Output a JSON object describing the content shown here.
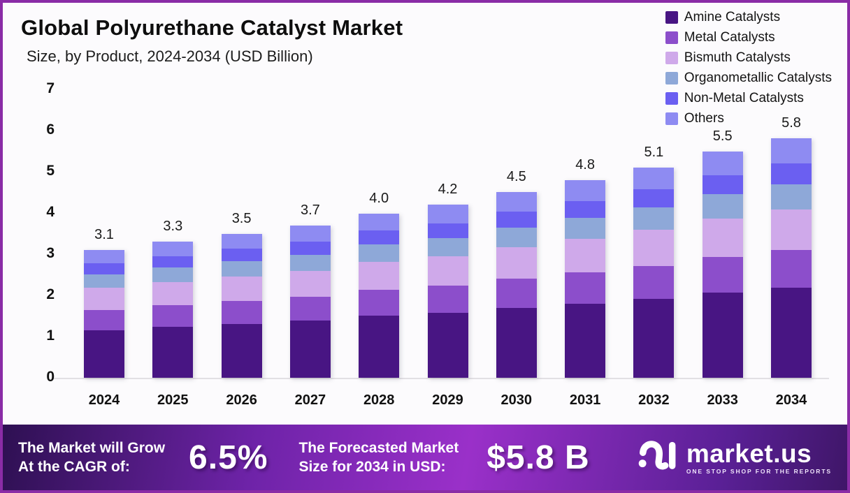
{
  "header": {
    "title": "Global Polyurethane Catalyst Market",
    "subtitle": "Size, by Product, 2024-2034 (USD Billion)"
  },
  "chart_data": {
    "type": "bar",
    "stacked": true,
    "title": "Global Polyurethane Catalyst Market Size, by Product, 2024-2034 (USD Billion)",
    "categories": [
      "2024",
      "2025",
      "2026",
      "2027",
      "2028",
      "2029",
      "2030",
      "2031",
      "2032",
      "2033",
      "2034"
    ],
    "total_labels": [
      "3.1",
      "3.3",
      "3.5",
      "3.7",
      "4.0",
      "4.2",
      "4.5",
      "4.8",
      "5.1",
      "5.5",
      "5.8"
    ],
    "totals": [
      3.1,
      3.3,
      3.5,
      3.7,
      4.0,
      4.2,
      4.5,
      4.8,
      5.1,
      5.5,
      5.8
    ],
    "series": [
      {
        "name": "Amine Catalysts",
        "color": "#481583",
        "values": [
          1.16,
          1.24,
          1.31,
          1.39,
          1.5,
          1.58,
          1.69,
          1.8,
          1.91,
          2.06,
          2.18
        ]
      },
      {
        "name": "Metal Catalysts",
        "color": "#8c4ecb",
        "values": [
          0.49,
          0.52,
          0.55,
          0.58,
          0.63,
          0.66,
          0.71,
          0.76,
          0.81,
          0.87,
          0.92
        ]
      },
      {
        "name": "Bismuth Catalysts",
        "color": "#cfa9ea",
        "values": [
          0.53,
          0.56,
          0.6,
          0.63,
          0.68,
          0.71,
          0.77,
          0.82,
          0.87,
          0.94,
          0.99
        ]
      },
      {
        "name": "Organometallic Catalysts",
        "color": "#8ea8d8",
        "values": [
          0.33,
          0.35,
          0.37,
          0.39,
          0.42,
          0.44,
          0.47,
          0.5,
          0.54,
          0.58,
          0.61
        ]
      },
      {
        "name": "Non-Metal Catalysts",
        "color": "#6b5ff1",
        "values": [
          0.27,
          0.28,
          0.3,
          0.32,
          0.34,
          0.36,
          0.39,
          0.41,
          0.44,
          0.47,
          0.5
        ]
      },
      {
        "name": "Others",
        "color": "#8e8bf2",
        "values": [
          0.33,
          0.35,
          0.37,
          0.39,
          0.42,
          0.45,
          0.48,
          0.51,
          0.54,
          0.58,
          0.61
        ]
      }
    ],
    "xlabel": "",
    "ylabel": "",
    "ylim": [
      0,
      7
    ],
    "yticks": [
      0,
      1,
      2,
      3,
      4,
      5,
      6,
      7
    ],
    "grid": false,
    "legend_position": "top-right"
  },
  "banner": {
    "cagr_label_line1": "The Market will Grow",
    "cagr_label_line2": "At the CAGR of:",
    "cagr_value": "6.5%",
    "forecast_label_line1": "The Forecasted Market",
    "forecast_label_line2": "Size for 2034 in USD:",
    "forecast_value": "$5.8 B",
    "brand_name": "market.us",
    "brand_tagline": "ONE STOP SHOP FOR THE REPORTS"
  },
  "colors": {
    "frame_border": "#8a2ca6",
    "chart_background": "#fcfbfd",
    "banner_gradient_start": "#2e1052",
    "banner_gradient_mid": "#9a30c9",
    "banner_gradient_end": "#3f1668",
    "axis_line": "#e2e0e4",
    "text_dark": "#111111",
    "text_light": "#ffffff"
  }
}
